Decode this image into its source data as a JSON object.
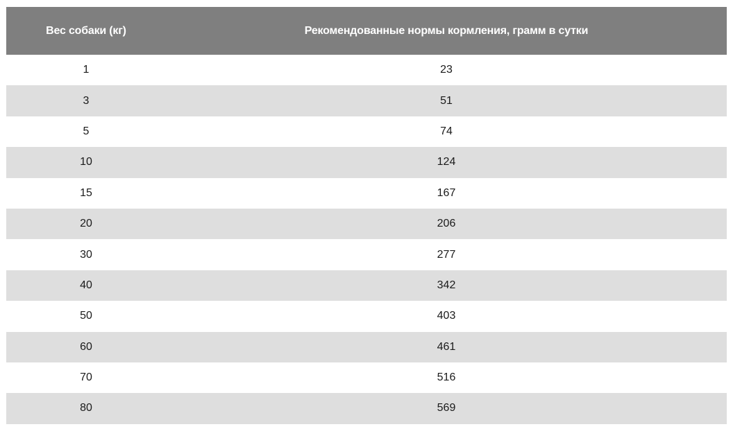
{
  "table": {
    "headers": [
      "Вес собаки (кг)",
      "Рекомендованные нормы кормления, грамм в сутки"
    ],
    "rows": [
      [
        "1",
        "23"
      ],
      [
        "3",
        "51"
      ],
      [
        "5",
        "74"
      ],
      [
        "10",
        "124"
      ],
      [
        "15",
        "167"
      ],
      [
        "20",
        "206"
      ],
      [
        "30",
        "277"
      ],
      [
        "40",
        "342"
      ],
      [
        "50",
        "403"
      ],
      [
        "60",
        "461"
      ],
      [
        "70",
        "516"
      ],
      [
        "80",
        "569"
      ]
    ]
  },
  "colors": {
    "header_bg": "#7f7f7f",
    "header_text": "#ffffff",
    "row_shade": "#dedede",
    "row_plain": "#ffffff"
  }
}
